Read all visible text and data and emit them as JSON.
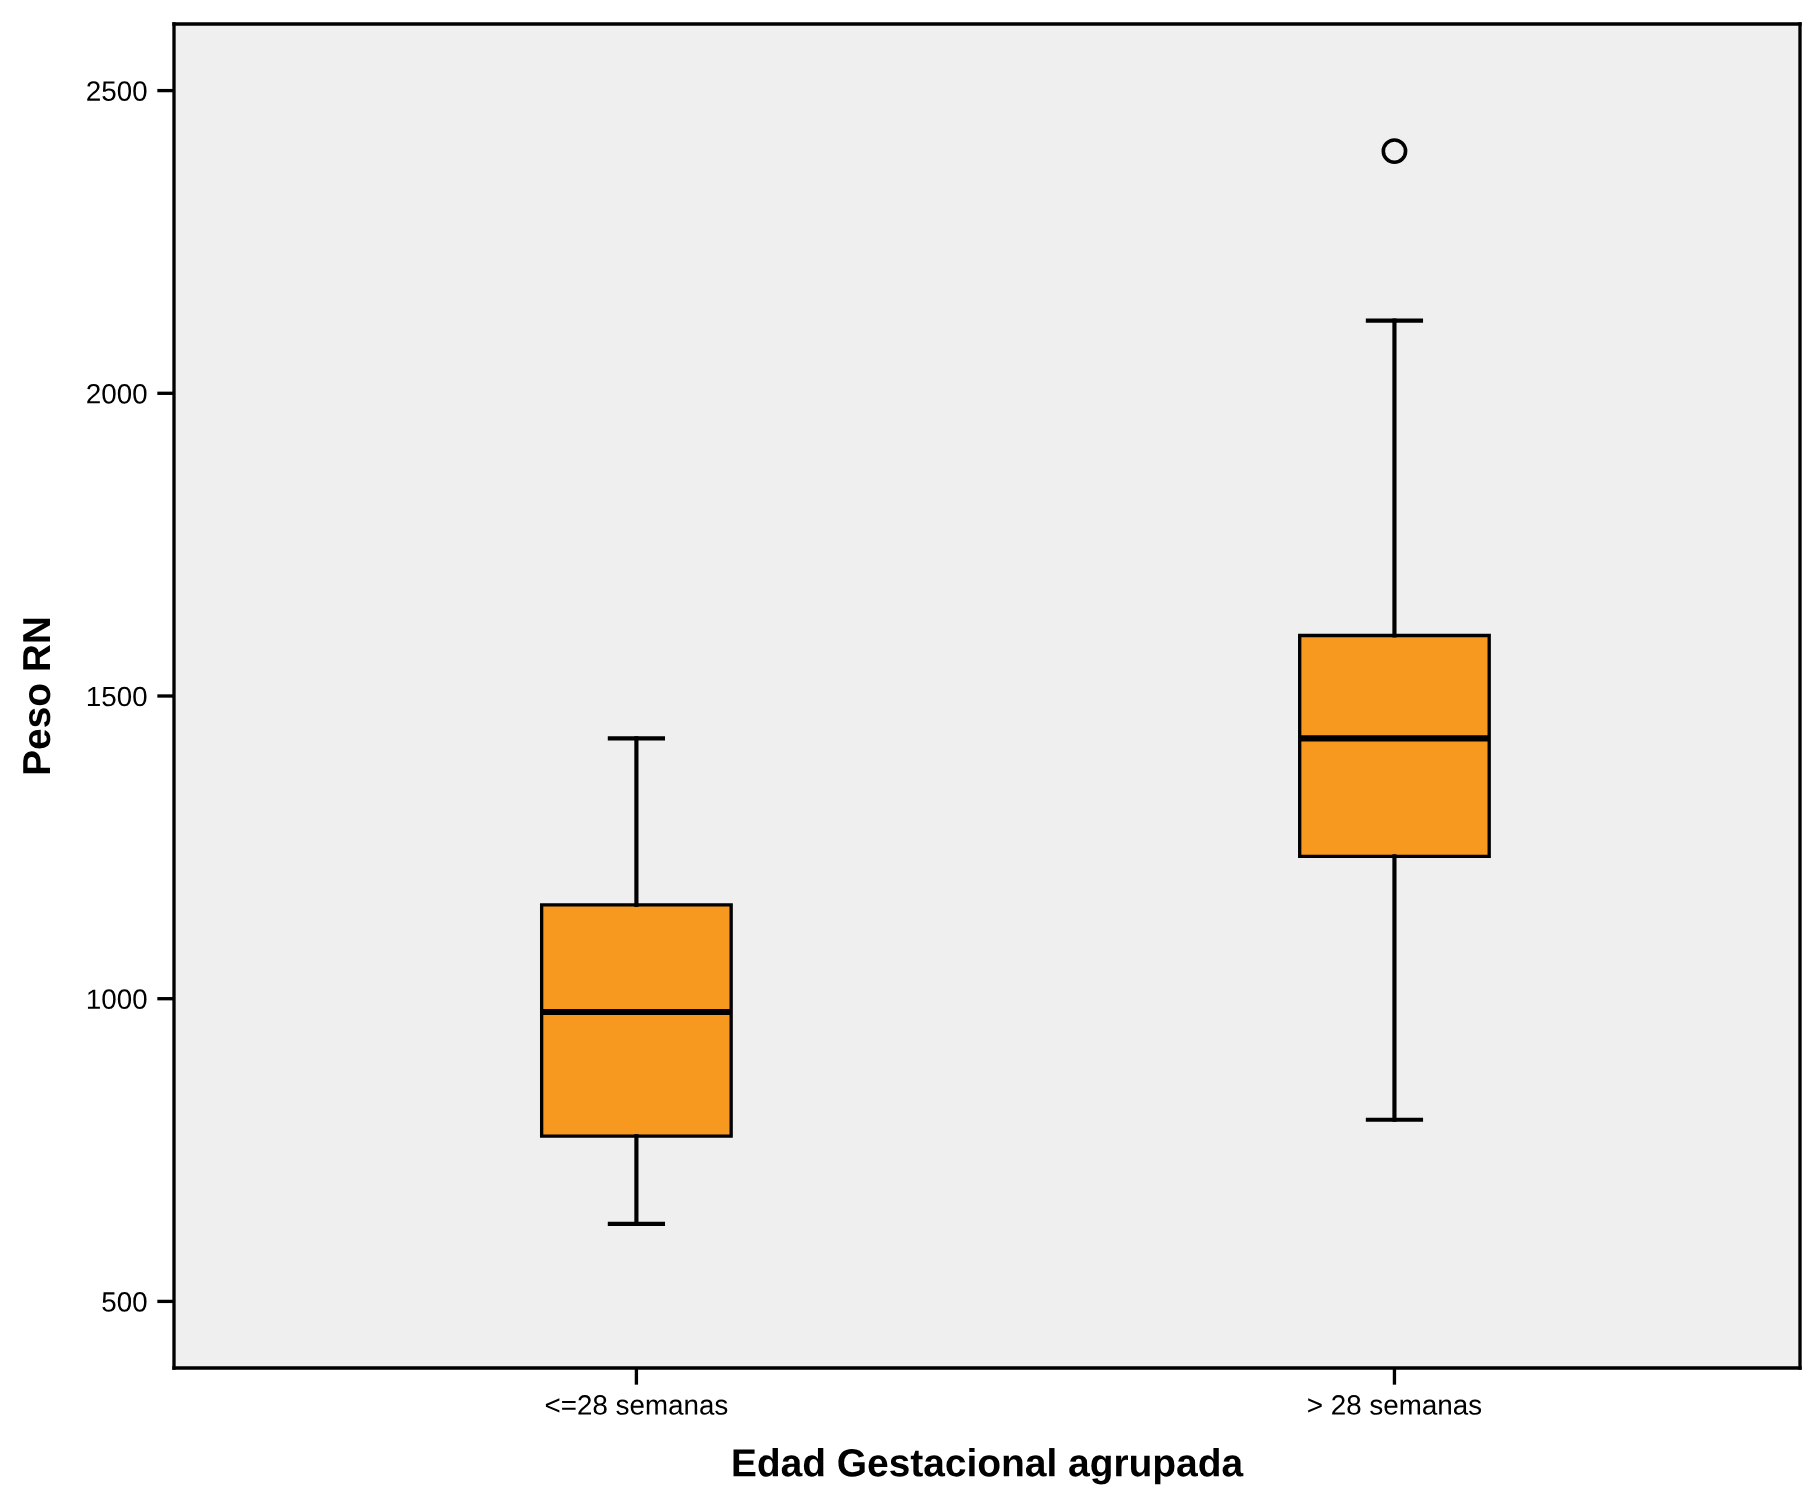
{
  "chart_data": {
    "type": "box",
    "xlabel": "Edad Gestacional agrupada",
    "ylabel": "Peso RN",
    "categories": [
      "<=28 semanas",
      "> 28 semanas"
    ],
    "boxes": [
      {
        "low": 628,
        "q1": 773,
        "median": 978,
        "q3": 1155,
        "high": 1430
      },
      {
        "low": 800,
        "q1": 1235,
        "median": 1430,
        "q3": 1600,
        "high": 2120,
        "outliers": [
          2400
        ]
      }
    ],
    "color": "#f7991f",
    "ylim": [
      390,
      2610
    ],
    "yticks": [
      500,
      1000,
      1500,
      2000,
      2500
    ],
    "grid": false,
    "legend": false
  }
}
